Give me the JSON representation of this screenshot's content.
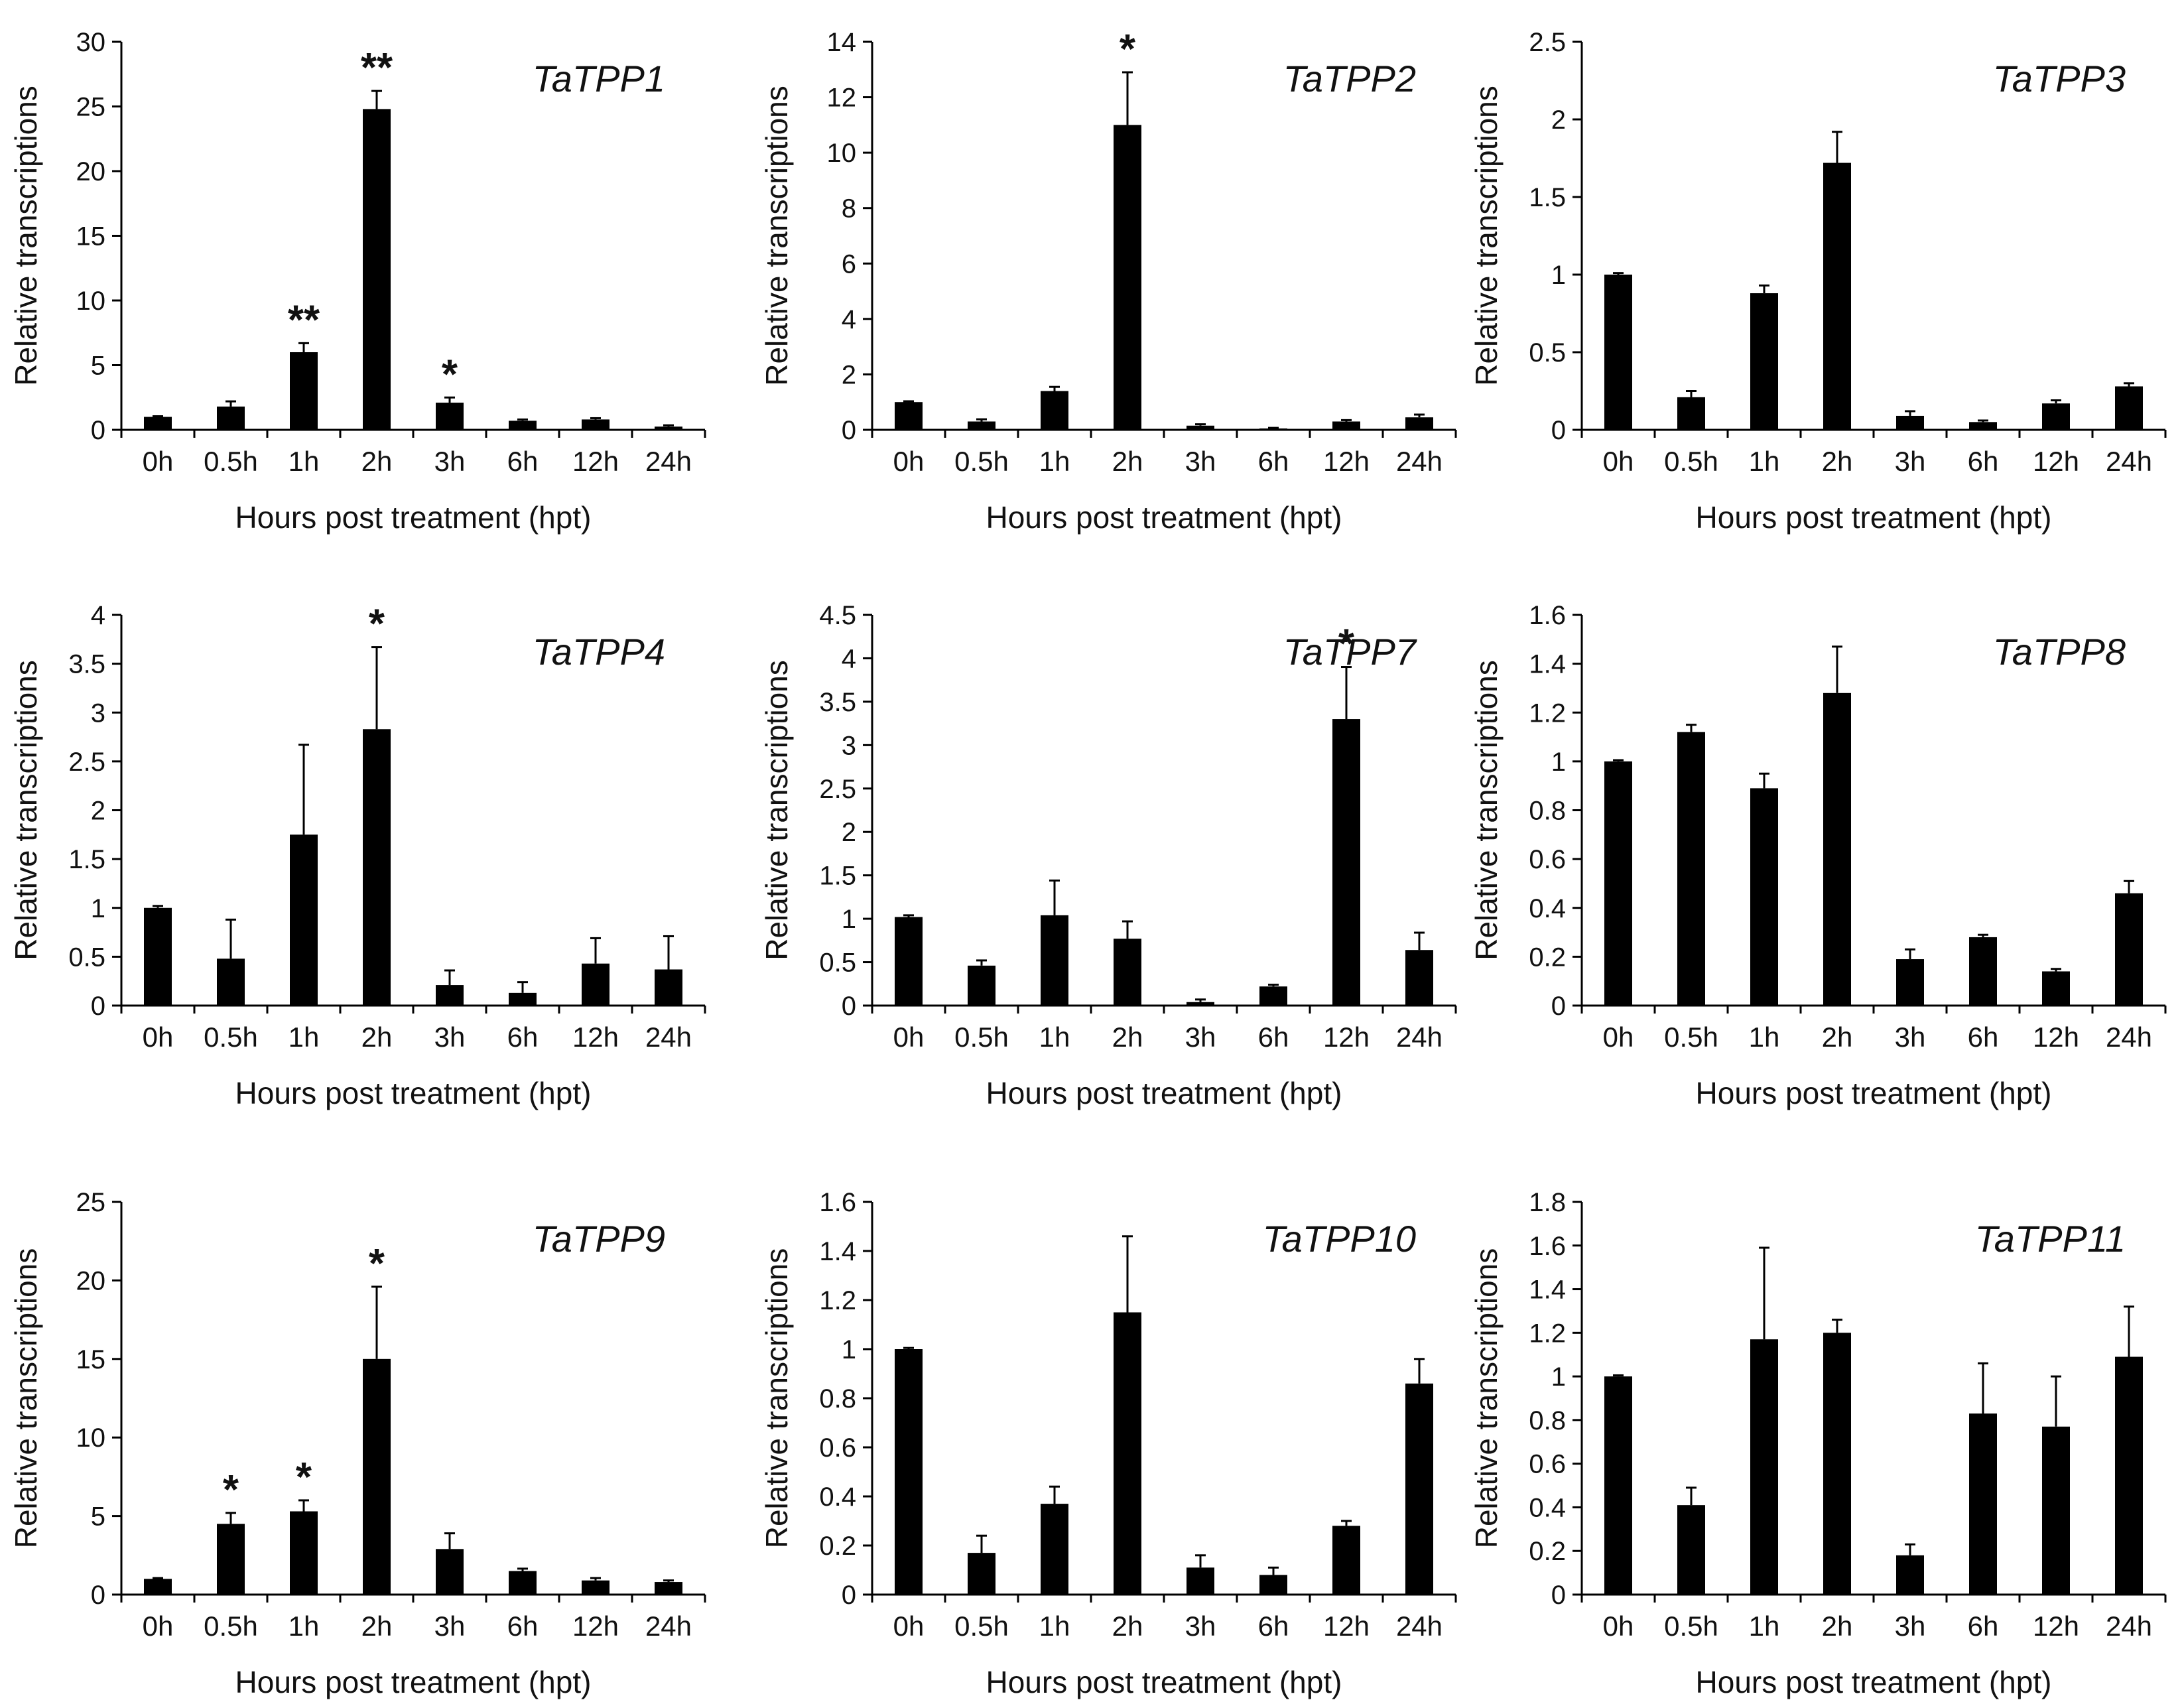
{
  "chart_data": [
    {
      "type": "bar",
      "title": "TaTPP1",
      "xlabel": "Hours post treatment (hpt)",
      "ylabel": "Relative transcriptions",
      "categories": [
        "0h",
        "0.5h",
        "1h",
        "2h",
        "3h",
        "6h",
        "12h",
        "24h"
      ],
      "values": [
        1,
        1.8,
        6,
        24.8,
        2.1,
        0.7,
        0.8,
        0.25
      ],
      "errors": [
        0.05,
        0.4,
        0.7,
        1.4,
        0.4,
        0.1,
        0.1,
        0.1
      ],
      "significance": [
        "",
        "",
        "**",
        "**",
        "*",
        "",
        "",
        ""
      ],
      "ylim": [
        0,
        30
      ],
      "yticks": [
        "0",
        "5",
        "10",
        "15",
        "20",
        "25",
        "30"
      ]
    },
    {
      "type": "bar",
      "title": "TaTPP2",
      "xlabel": "Hours post treatment (hpt)",
      "ylabel": "Relative transcriptions",
      "categories": [
        "0h",
        "0.5h",
        "1h",
        "2h",
        "3h",
        "6h",
        "12h",
        "24h"
      ],
      "values": [
        1,
        0.3,
        1.4,
        11,
        0.15,
        0.05,
        0.3,
        0.45
      ],
      "errors": [
        0.03,
        0.08,
        0.15,
        1.9,
        0.05,
        0.02,
        0.05,
        0.1
      ],
      "significance": [
        "",
        "",
        "",
        "*",
        "",
        "",
        "",
        ""
      ],
      "ylim": [
        0,
        14
      ],
      "yticks": [
        "0",
        "2",
        "4",
        "6",
        "8",
        "10",
        "12",
        "14"
      ]
    },
    {
      "type": "bar",
      "title": "TaTPP3",
      "xlabel": "Hours post treatment (hpt)",
      "ylabel": "Relative transcriptions",
      "categories": [
        "0h",
        "0.5h",
        "1h",
        "2h",
        "3h",
        "6h",
        "12h",
        "24h"
      ],
      "values": [
        1,
        0.21,
        0.88,
        1.72,
        0.09,
        0.05,
        0.17,
        0.28
      ],
      "errors": [
        0.01,
        0.04,
        0.05,
        0.2,
        0.03,
        0.01,
        0.02,
        0.02
      ],
      "significance": [
        "",
        "",
        "",
        "",
        "",
        "",
        "",
        ""
      ],
      "ylim": [
        0,
        2.5
      ],
      "yticks": [
        "0",
        "0.5",
        "1",
        "1.5",
        "2",
        "2.5"
      ]
    },
    {
      "type": "bar",
      "title": "TaTPP4",
      "xlabel": "Hours post treatment (hpt)",
      "ylabel": "Relative transcriptions",
      "categories": [
        "0h",
        "0.5h",
        "1h",
        "2h",
        "3h",
        "6h",
        "12h",
        "24h"
      ],
      "values": [
        1,
        0.48,
        1.75,
        2.83,
        0.21,
        0.13,
        0.43,
        0.37
      ],
      "errors": [
        0.02,
        0.4,
        0.92,
        0.84,
        0.15,
        0.11,
        0.26,
        0.34
      ],
      "significance": [
        "",
        "",
        "",
        "*",
        "",
        "",
        "",
        ""
      ],
      "ylim": [
        0,
        4
      ],
      "yticks": [
        "0",
        "0.5",
        "1",
        "1.5",
        "2",
        "2.5",
        "3",
        "3.5",
        "4"
      ]
    },
    {
      "type": "bar",
      "title": "TaTPP7",
      "xlabel": "Hours post treatment (hpt)",
      "ylabel": "Relative transcriptions",
      "categories": [
        "0h",
        "0.5h",
        "1h",
        "2h",
        "3h",
        "6h",
        "12h",
        "24h"
      ],
      "values": [
        1.02,
        0.46,
        1.04,
        0.77,
        0.04,
        0.22,
        3.3,
        0.64
      ],
      "errors": [
        0.02,
        0.06,
        0.4,
        0.2,
        0.03,
        0.02,
        0.6,
        0.2
      ],
      "significance": [
        "",
        "",
        "",
        "",
        "",
        "",
        "*",
        ""
      ],
      "ylim": [
        0,
        4.5
      ],
      "yticks": [
        "0",
        "0.5",
        "1",
        "1.5",
        "2",
        "2.5",
        "3",
        "3.5",
        "4",
        "4.5"
      ]
    },
    {
      "type": "bar",
      "title": "TaTPP8",
      "xlabel": "Hours post treatment (hpt)",
      "ylabel": "Relative transcriptions",
      "categories": [
        "0h",
        "0.5h",
        "1h",
        "2h",
        "3h",
        "6h",
        "12h",
        "24h"
      ],
      "values": [
        1,
        1.12,
        0.89,
        1.28,
        0.19,
        0.28,
        0.14,
        0.46
      ],
      "errors": [
        0.005,
        0.03,
        0.06,
        0.19,
        0.04,
        0.01,
        0.01,
        0.05
      ],
      "significance": [
        "",
        "",
        "",
        "",
        "",
        "",
        "",
        ""
      ],
      "ylim": [
        0,
        1.6
      ],
      "yticks": [
        "0",
        "0.2",
        "0.4",
        "0.6",
        "0.8",
        "1",
        "1.2",
        "1.4",
        "1.6"
      ]
    },
    {
      "type": "bar",
      "title": "TaTPP9",
      "xlabel": "Hours post treatment (hpt)",
      "ylabel": "Relative transcriptions",
      "categories": [
        "0h",
        "0.5h",
        "1h",
        "2h",
        "3h",
        "6h",
        "12h",
        "24h"
      ],
      "values": [
        1,
        4.5,
        5.3,
        15,
        2.9,
        1.5,
        0.9,
        0.8
      ],
      "errors": [
        0.05,
        0.7,
        0.7,
        4.6,
        1,
        0.15,
        0.15,
        0.1
      ],
      "significance": [
        "",
        "*",
        "*",
        "*",
        "",
        "",
        "",
        ""
      ],
      "ylim": [
        0,
        25
      ],
      "yticks": [
        "0",
        "5",
        "10",
        "15",
        "20",
        "25"
      ]
    },
    {
      "type": "bar",
      "title": "TaTPP10",
      "xlabel": "Hours post treatment (hpt)",
      "ylabel": "Relative transcriptions",
      "categories": [
        "0h",
        "0.5h",
        "1h",
        "2h",
        "3h",
        "6h",
        "12h",
        "24h"
      ],
      "values": [
        1,
        0.17,
        0.37,
        1.15,
        0.11,
        0.08,
        0.28,
        0.86
      ],
      "errors": [
        0.005,
        0.07,
        0.07,
        0.31,
        0.05,
        0.03,
        0.02,
        0.1
      ],
      "significance": [
        "",
        "",
        "",
        "",
        "",
        "",
        "",
        ""
      ],
      "ylim": [
        0,
        1.6
      ],
      "yticks": [
        "0",
        "0.2",
        "0.4",
        "0.6",
        "0.8",
        "1",
        "1.2",
        "1.4",
        "1.6"
      ]
    },
    {
      "type": "bar",
      "title": "TaTPP11",
      "xlabel": "Hours post treatment (hpt)",
      "ylabel": "Relative transcriptions",
      "categories": [
        "0h",
        "0.5h",
        "1h",
        "2h",
        "3h",
        "6h",
        "12h",
        "24h"
      ],
      "values": [
        1,
        0.41,
        1.17,
        1.2,
        0.18,
        0.83,
        0.77,
        1.09
      ],
      "errors": [
        0.005,
        0.08,
        0.42,
        0.06,
        0.05,
        0.23,
        0.23,
        0.23
      ],
      "significance": [
        "",
        "",
        "",
        "",
        "",
        "",
        "",
        ""
      ],
      "ylim": [
        0,
        1.8
      ],
      "yticks": [
        "0",
        "0.2",
        "0.4",
        "0.6",
        "0.8",
        "1",
        "1.2",
        "1.4",
        "1.6",
        "1.8"
      ]
    }
  ]
}
